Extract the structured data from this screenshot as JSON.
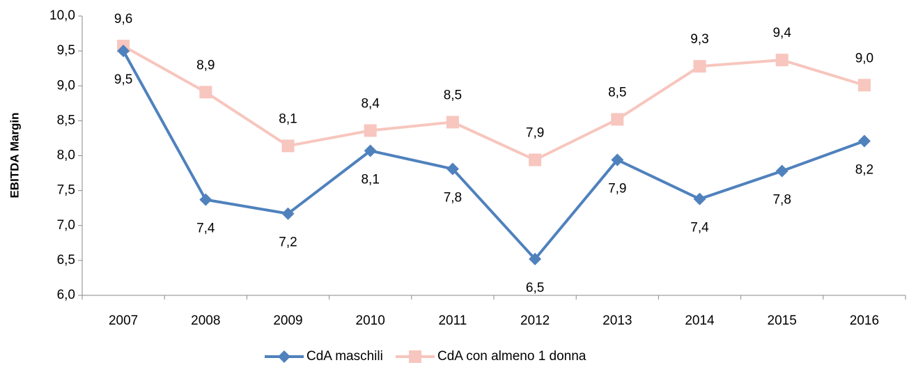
{
  "chart_data": {
    "type": "line",
    "ylabel": "EBITDA Margin",
    "categories": [
      "2007",
      "2008",
      "2009",
      "2010",
      "2011",
      "2012",
      "2013",
      "2014",
      "2015",
      "2016"
    ],
    "series": [
      {
        "name": "CdA maschili",
        "color": "#4f81bd",
        "marker": "diamond",
        "values": [
          9.5,
          7.37,
          7.17,
          8.07,
          7.81,
          6.52,
          7.94,
          7.38,
          7.78,
          8.21
        ],
        "value_labels": [
          "9,5",
          "7,4",
          "7,2",
          "8,1",
          "7,8",
          "6,5",
          "7,9",
          "7,4",
          "7,8",
          "8,2"
        ]
      },
      {
        "name": "CdA con almeno 1 donna",
        "color": "#f7c6be",
        "marker": "square",
        "values": [
          9.57,
          8.91,
          8.14,
          8.36,
          8.48,
          7.94,
          8.52,
          9.28,
          9.37,
          9.01
        ],
        "value_labels": [
          "9,6",
          "8,9",
          "8,1",
          "8,4",
          "8,5",
          "7,9",
          "8,5",
          "9,3",
          "9,4",
          "9,0"
        ]
      }
    ],
    "ylim": [
      6.0,
      10.0
    ],
    "yticks": [
      {
        "value": 6.0,
        "label": "6,0"
      },
      {
        "value": 6.5,
        "label": "6,5"
      },
      {
        "value": 7.0,
        "label": "7,0"
      },
      {
        "value": 7.5,
        "label": "7,5"
      },
      {
        "value": 8.0,
        "label": "8,0"
      },
      {
        "value": 8.5,
        "label": "8,5"
      },
      {
        "value": 9.0,
        "label": "9,0"
      },
      {
        "value": 9.5,
        "label": "9,5"
      },
      {
        "value": 10.0,
        "label": "10,0"
      }
    ],
    "grid": false,
    "legend": "bottom"
  }
}
